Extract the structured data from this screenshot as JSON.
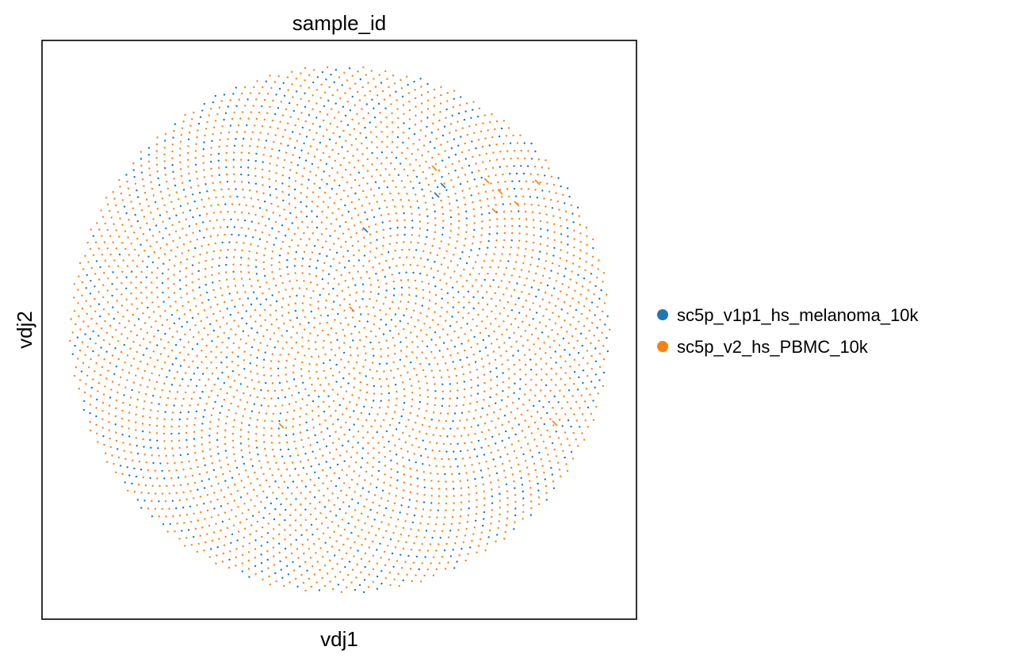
{
  "chart_data": {
    "type": "scatter",
    "title": "sample_id",
    "xlabel": "vdj1",
    "ylabel": "vdj2",
    "grid": false,
    "ticks": "none",
    "legend_position": "right",
    "series": [
      {
        "name": "sc5p_v1p1_hs_melanoma_10k",
        "color": "#1f77b4",
        "share": 0.25
      },
      {
        "name": "sc5p_v2_hs_PBMC_10k",
        "color": "#ff7f0e",
        "share": 0.75
      }
    ],
    "layout_shape": "disc",
    "approx_point_count": 4200
  }
}
